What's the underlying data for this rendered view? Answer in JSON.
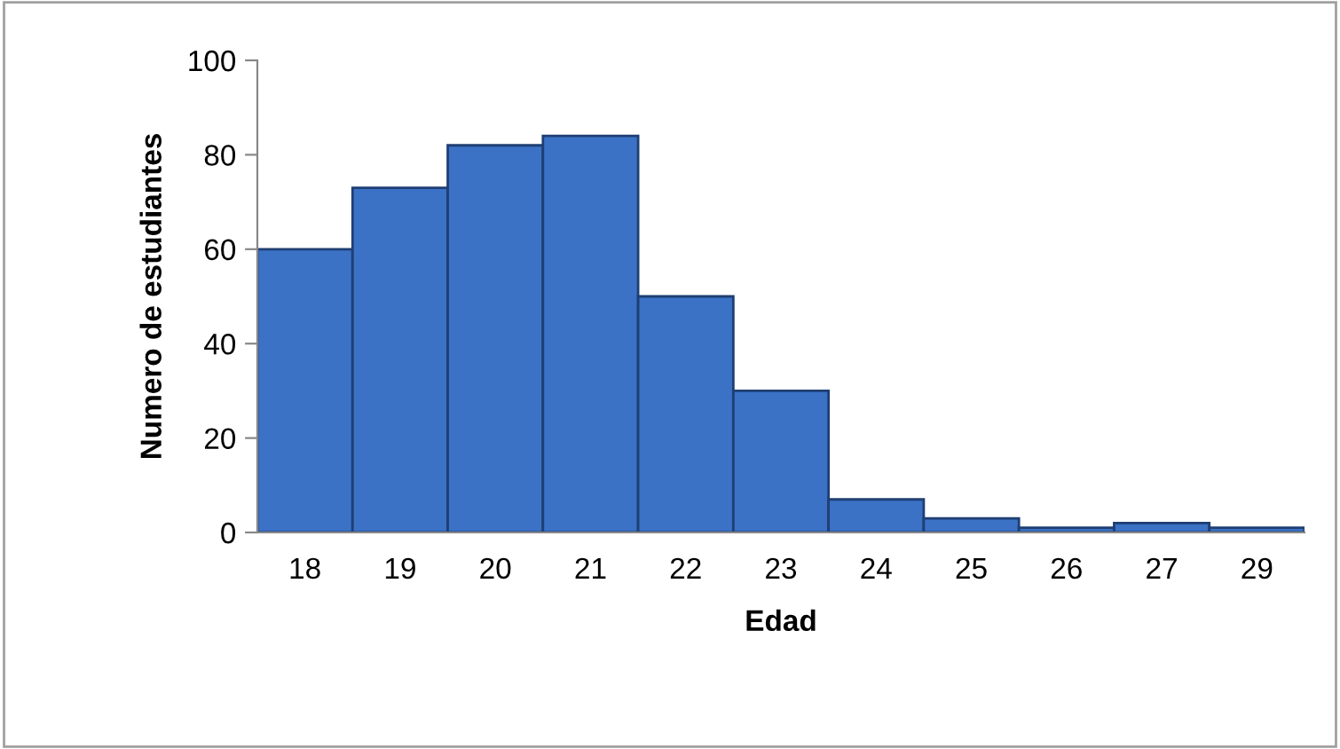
{
  "chart_data": {
    "type": "bar",
    "xlabel": "Edad",
    "ylabel": "Numero de estudiantes",
    "categories": [
      "18",
      "19",
      "20",
      "21",
      "22",
      "23",
      "24",
      "25",
      "26",
      "27",
      "29"
    ],
    "values": [
      60,
      73,
      82,
      84,
      50,
      30,
      7,
      3,
      1,
      2,
      1
    ],
    "color": "#3b72c6",
    "ylim": [
      0,
      100
    ],
    "yticks": [
      0,
      20,
      40,
      60,
      80,
      100
    ],
    "grid": false,
    "legend": false
  }
}
